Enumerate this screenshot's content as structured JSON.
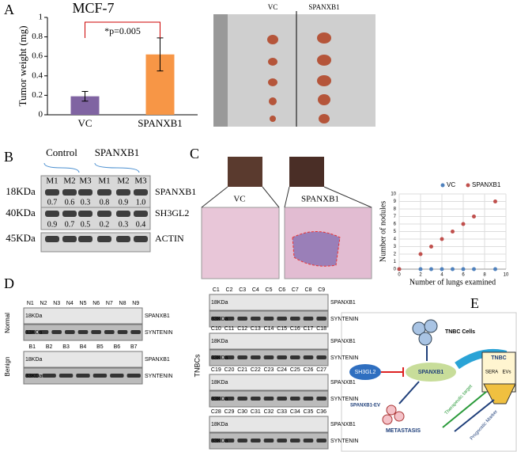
{
  "panel_labels": [
    "A",
    "B",
    "C",
    "D",
    "E"
  ],
  "chart_data": [
    {
      "type": "bar",
      "title": "MCF-7",
      "y_label": "Tumor weight (mg)",
      "categories": [
        "VC",
        "SPANXB1"
      ],
      "values": [
        0.19,
        0.62
      ],
      "errors": [
        0.05,
        0.17
      ],
      "colors": [
        "#8064a2",
        "#f79646"
      ],
      "ylim": [
        0,
        1
      ],
      "yticks": [
        0,
        0.2,
        0.4,
        0.6,
        0.8,
        1
      ],
      "annotation": "*p=0.005"
    },
    {
      "type": "scatter",
      "x_label": "Number of  lungs examined",
      "y_label": "Number of nodules",
      "series": [
        {
          "name": "VC",
          "color": "#4f81bd",
          "x": [
            0,
            2,
            3,
            4,
            5,
            6,
            7,
            9
          ],
          "values": [
            0,
            0,
            0,
            0,
            0,
            0,
            0,
            0
          ]
        },
        {
          "name": "SPANXB1",
          "color": "#c0504d",
          "x": [
            0,
            2,
            3,
            4,
            5,
            6,
            7,
            9
          ],
          "values": [
            0,
            2,
            3,
            4,
            5,
            6,
            7,
            9
          ]
        }
      ],
      "xlim": [
        0,
        10
      ],
      "xticks": [
        0,
        2,
        4,
        6,
        8,
        10
      ],
      "ylim": [
        0,
        10
      ],
      "yticks": [
        0,
        1,
        2,
        3,
        4,
        5,
        6,
        7,
        8,
        9,
        10
      ],
      "grid": true,
      "legend": "top"
    }
  ],
  "panel_a": {
    "photo_labels": [
      "VC",
      "SPANXB1"
    ]
  },
  "panel_b": {
    "groups": [
      "Control",
      "SPANXB1"
    ],
    "lanes": [
      "M1",
      "M2",
      "M3",
      "M1",
      "M2",
      "M3"
    ],
    "rows": [
      {
        "size": "18KDa",
        "protein": "SPANXB1",
        "values": [
          "0.7",
          "0.6",
          "0.3",
          "0.8",
          "0.9",
          "1.0"
        ]
      },
      {
        "size": "40KDa",
        "protein": "SH3GL2",
        "values": [
          "0.9",
          "0.7",
          "0.5",
          "0.2",
          "0.3",
          "0.4"
        ]
      },
      {
        "size": "45KDa",
        "protein": "ACTIN"
      }
    ]
  },
  "panel_c": {
    "image_labels": [
      "VC",
      "SPANXB1"
    ]
  },
  "panel_d": {
    "blocks": [
      {
        "group": "Normal",
        "lanes": [
          "N1",
          "N2",
          "N3",
          "N4",
          "N5",
          "N6",
          "N7",
          "N8",
          "N9"
        ],
        "sizes": [
          "18KDa",
          "33KDa"
        ],
        "proteins": [
          "SPANXB1",
          "SYNTENIN"
        ]
      },
      {
        "group": "Benign",
        "lanes": [
          "B1",
          "B2",
          "B3",
          "B4",
          "B5",
          "B6",
          "B7"
        ],
        "sizes": [
          "18KDa",
          "33KDa"
        ],
        "proteins": [
          "SPANXB1",
          "SYNTENIN"
        ]
      }
    ],
    "tnbc": {
      "group": "TNBCs",
      "sizes": [
        "18KDa",
        "33KDa"
      ],
      "proteins": [
        "SPANXB1",
        "SYNTENIN"
      ],
      "blocks": [
        [
          "C1",
          "C2",
          "C3",
          "C4",
          "C5",
          "C6",
          "C7",
          "C8",
          "C9"
        ],
        [
          "C10",
          "C11",
          "C12",
          "C13",
          "C14",
          "C15",
          "C16",
          "C17",
          "C18"
        ],
        [
          "C19",
          "C20",
          "C21",
          "C22",
          "C23",
          "C24",
          "C25",
          "C26",
          "C27"
        ],
        [
          "C28",
          "C29",
          "C30",
          "C31",
          "C32",
          "C33",
          "C34",
          "C35",
          "C36"
        ]
      ]
    }
  },
  "panel_e": {
    "cells": "TNBC Cells",
    "inhibitor": "SH3GL2",
    "center": "SPANXB1",
    "tnbc": "TNBC",
    "sera": "SERA",
    "evs": "EVs",
    "ev": "SPANXB1-EV",
    "metastasis": "METASTASIS",
    "target": "Therapeutic target",
    "marker": "Prognostic Marker"
  }
}
